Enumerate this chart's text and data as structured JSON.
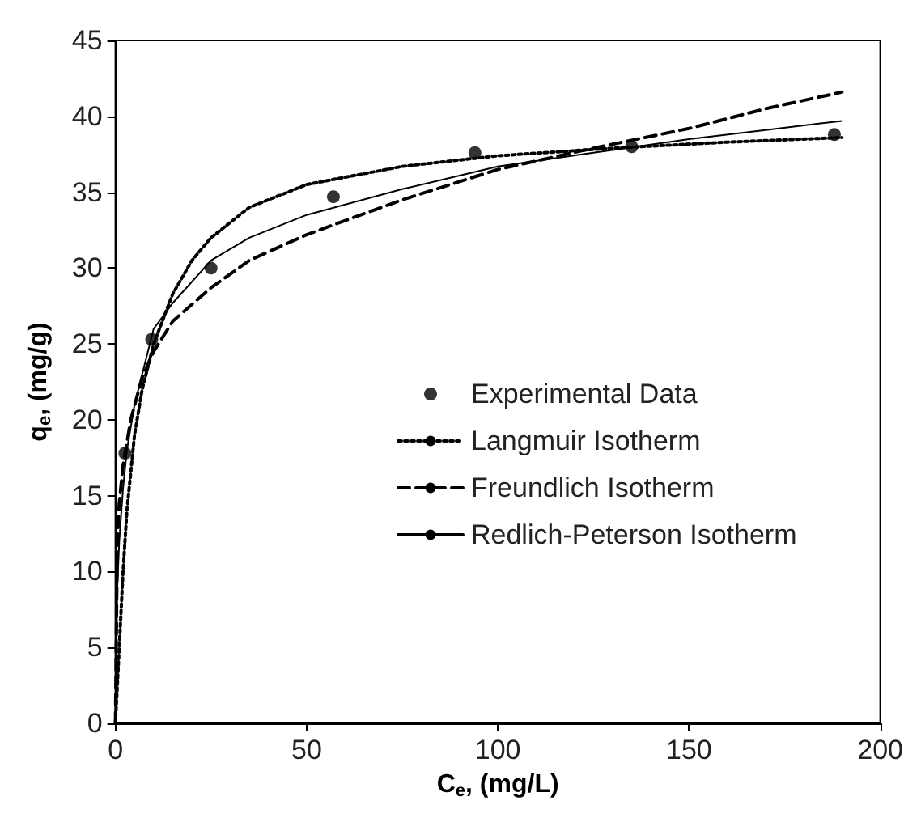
{
  "chart_data": {
    "type": "line",
    "xlabel": "C$_{e}$, (mg/L)",
    "ylabel": "q$_{e}$, (mg/g)",
    "xlim": [
      0,
      200
    ],
    "xticks": [
      0,
      50,
      100,
      150,
      200
    ],
    "ylim": [
      0,
      45
    ],
    "yticks": [
      0,
      5,
      10,
      15,
      20,
      25,
      30,
      35,
      40,
      45
    ],
    "grid": false,
    "legend": "right",
    "series": [
      {
        "name": "Experimental Data",
        "type": "scatter",
        "marker": "circle",
        "color": "#000000",
        "x": [
          2.5,
          9.5,
          25,
          57,
          94,
          135,
          188
        ],
        "values": [
          17.8,
          25.3,
          30,
          34.7,
          37.6,
          38,
          38.8
        ]
      },
      {
        "name": "Langmuir Isotherm",
        "line_style": "dotted",
        "color": "#000000",
        "x": [
          0,
          1,
          2,
          3,
          5,
          7,
          10,
          15,
          20,
          25,
          35,
          50,
          75,
          100,
          130,
          160,
          190
        ],
        "values": [
          0,
          5,
          10,
          14,
          19,
          22,
          25,
          28.3,
          30.5,
          32,
          34,
          35.5,
          36.7,
          37.4,
          37.9,
          38.3,
          38.6
        ]
      },
      {
        "name": "Freundlich Isotherm",
        "line_style": "dashed",
        "color": "#000000",
        "x": [
          0,
          0.5,
          1,
          2,
          4,
          7,
          10,
          15,
          25,
          35,
          50,
          75,
          100,
          125,
          150,
          170,
          190
        ],
        "values": [
          0,
          12,
          14.5,
          17,
          20,
          22.8,
          24.5,
          26.5,
          28.7,
          30.5,
          32.2,
          34.5,
          36.5,
          37.9,
          39.2,
          40.5,
          41.6
        ]
      },
      {
        "name": "Redlich-Peterson Isotherm",
        "line_style": "solid",
        "color": "#000000",
        "x": [
          0,
          0.5,
          1,
          2,
          3,
          5,
          10,
          15,
          25,
          35,
          50,
          75,
          100,
          125,
          150,
          170,
          190
        ],
        "values": [
          0,
          9,
          12,
          15.5,
          18,
          21,
          26,
          27.7,
          30.5,
          32,
          33.5,
          35.2,
          36.7,
          37.6,
          38.5,
          39.1,
          39.7
        ]
      }
    ]
  }
}
